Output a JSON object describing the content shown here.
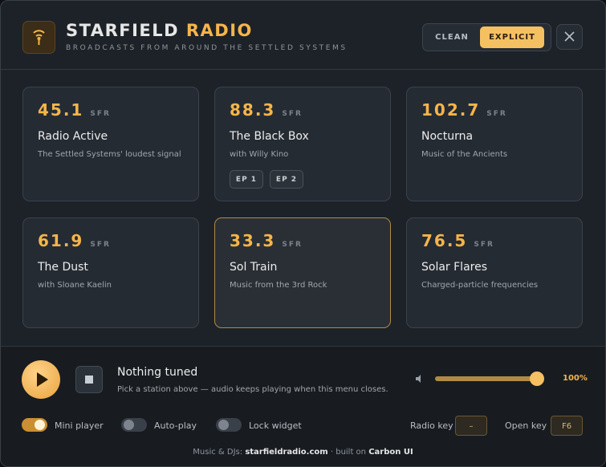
{
  "header": {
    "title_main": "STARFIELD",
    "title_accent": "RADIO",
    "subtitle": "BROADCASTS FROM AROUND THE SETTLED SYSTEMS",
    "filters": [
      {
        "label": "CLEAN",
        "active": false
      },
      {
        "label": "EXPLICIT",
        "active": true
      }
    ]
  },
  "stations": [
    {
      "frequency": 45.1,
      "unit": "SFR",
      "name": "Radio Active",
      "description": "The Settled Systems' loudest signal"
    },
    {
      "frequency": 88.3,
      "unit": "SFR",
      "name": "The Black Box",
      "description": "with Willy Kino",
      "episodes": [
        "EP 1",
        "EP 2"
      ]
    },
    {
      "frequency": 102.7,
      "unit": "SFR",
      "name": "Nocturna",
      "description": "Music of the Ancients"
    },
    {
      "frequency": 61.9,
      "unit": "SFR",
      "name": "The Dust",
      "description": "with Sloane Kaelin"
    },
    {
      "frequency": 33.3,
      "unit": "SFR",
      "name": "Sol Train",
      "description": "Music from the 3rd Rock",
      "selected": true
    },
    {
      "frequency": 76.5,
      "unit": "SFR",
      "name": "Solar Flares",
      "description": "Charged-particle frequencies"
    }
  ],
  "player": {
    "status": "Nothing tuned",
    "hint": "Pick a station above — audio keeps playing when this menu closes.",
    "volume": {
      "value": 100,
      "label": "100%"
    }
  },
  "toggles": [
    {
      "label": "Mini player",
      "on": true
    },
    {
      "label": "Auto-play",
      "on": false
    },
    {
      "label": "Lock widget",
      "on": false
    }
  ],
  "keys": [
    {
      "label": "Radio key",
      "key": "–"
    },
    {
      "label": "Open key",
      "key": "F6"
    }
  ],
  "footer": {
    "prefix": "Music & DJs:",
    "site": "starfieldradio.com",
    "middle": "· built on",
    "brand": "Carbon UI"
  }
}
